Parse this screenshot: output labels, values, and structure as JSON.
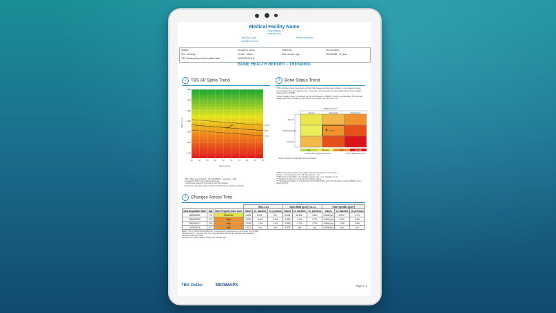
{
  "report": {
    "facility_name": "Medical Facility Name",
    "chief_name": "Chief Name",
    "address": "Address line",
    "city_zip": "City/Zip Code",
    "phone": "Phone Number",
    "email": "mail@mail.com",
    "patient_label": "Patient:",
    "patient_name": "Humphrey, Jenny",
    "patient_id_label": "Patient ID:",
    "patient_id": "TEU-00-5574",
    "sex_label": "Sex - Ethnicity:",
    "sex_value": "Female - White",
    "dob_label": "Date of birth - Age:",
    "dob_value": "12/10/1958 - 70 years",
    "modified_label": "TBS Trending Report last modified date:",
    "modified_value": "24/05/2023 10:11",
    "title": "BONE HEALTH REPORT - TRENDING"
  },
  "sections": {
    "s1_num": "1",
    "s1_title": "TBS AP Spine Trend",
    "s2_num": "2",
    "s2_title": "Bone Status Trend",
    "s3_num": "3",
    "s3_title": "Changes Across Time"
  },
  "chart_data": {
    "type": "scatter",
    "title": "TBS AP Spine Trend",
    "xlabel": "Age (years)",
    "ylabel": "TBS L1-L4",
    "x_ticks": [
      "45",
      "50",
      "55",
      "60",
      "65",
      "70",
      "75",
      "80",
      "85",
      "90"
    ],
    "y_ticks": [
      "1.600",
      "1.500",
      "1.400",
      "1.300",
      "1.200",
      "1.100",
      "1.000"
    ],
    "xlim": [
      45,
      90
    ],
    "ylim": [
      0.95,
      1.6
    ],
    "series": [
      {
        "x": [
          67.4,
          68.6,
          69.6,
          70.6
        ],
        "y": [
          1.236,
          1.244,
          1.258,
          1.262
        ]
      }
    ],
    "zone_labels": [
      "-1 SD",
      "Mean",
      "+1 SD"
    ]
  },
  "chart_notes": [
    "TBS : Reference population : USA (NHANES) - Caucasian - white",
    "Comparison TBS to age-matched reference",
    "Treated bone treatment (0) range of intra TBS analysis",
    "Self-device correction based on Trisoun Orthoplosis de plants (17 agresqs)"
  ],
  "bone_status": {
    "paragraphs": [
      "TBS is derived from the texture of the DXA image and has been shown to be related to bone microarchitecture and fracture risk. It provides complementary information about bone health, independent of BMD.",
      "\"Bone Fragility Index\" is defined as the combination of BMD T-Score and absolute TBS lumbar categories. Bone Fragility Index Zones are based upon fracture risk."
    ],
    "matrix_title": "BMD T-Score*",
    "matrix_cols": [
      "Normal",
      "Osteopenia",
      "Osteoporosis"
    ],
    "matrix_rows": [
      "Normal",
      "Partially degraded",
      "Degraded"
    ],
    "zones": [
      "Low",
      "Moderate",
      "High",
      "Very high"
    ],
    "legend_left": "Increasing Bone Fragility Index Zones",
    "legend_right": "Bone Fragility Index Zones",
    "arrow_note": "Direction of significant trend vs previous**",
    "footnotes": [
      "* BMD T-score is the minimum value of given total hip, femoral neck or L1-L4 value.",
      "Normal ≥ -1.0, Osteopenia -1.0 to -2.5, Osteoporosis < -2.5.",
      "** TBS Trend: Normal TBS > 1.31 ; Partially degraded 1.23 - 1.31 ; Degraded < 1.23",
      "*** Significant trend based on minimal least significant change",
      "**** Significant trend based on intra-precision LSC for TBS (0.03%) at the DXA (Should be) member of BMD T-Score greater than 5%."
    ]
  },
  "changes_table": {
    "group_headers": [
      "TBS L1-L4",
      "Spine BMD (g/cm²) L1-L4",
      "Total Hip BMD (g/cm²)"
    ],
    "col_headers": [
      "DXA Acquisition Date",
      "Age",
      "Bone Fragility Index Zone",
      "Values",
      "vs. baseline",
      "vs. previous",
      "Values",
      "vs. baseline",
      "vs. previous",
      "Values",
      "vs. baseline",
      "vs. previous"
    ],
    "rows": [
      [
        "28/05/2021",
        "70",
        "Moderate",
        "1.256",
        "6.0% *",
        "2%",
        "0.841",
        "11.6% *",
        "3.6%",
        "0.638 (ss)",
        "6.0% *",
        "1.7%"
      ],
      [
        "28/06/2020",
        "69",
        "High",
        "1.236",
        "4.6%",
        "3.1%",
        "0.806",
        "7.4%",
        "2.7%",
        "0.630 (ss)",
        "4.5%",
        "2.3%"
      ],
      [
        "28/06/2017",
        "68",
        "High",
        "1.198",
        "1.3%",
        "1.1%",
        "0.805",
        "4.7%",
        "3.7%",
        "0.686 (ss)",
        "1.8%",
        "1.8%"
      ],
      [
        "10/04/2016",
        "67",
        "High",
        "1.187",
        "n/a",
        "n/a",
        "0.802",
        "n/a",
        "n/a",
        "0.698 (ss)",
        "n/a",
        "n/a"
      ]
    ],
    "zone_colors": {
      "Moderate": "#e8e64a",
      "High": "#f0932e"
    },
    "notes": [
      "Patient < 65 y/o: TBS is FDA for BMD Only - Facility specific procedure and is not included. LSC for BMD",
      "calculated as 2.77 x precision error. Any comparison above this LSC are matched with an asterisk (*).",
      "Values and Numbers in bold.",
      "(ss) Bone and extended BMD (4 zones) when indicated, (ss)."
    ]
  },
  "footer": {
    "brand1": "TBS Osteo",
    "brand2": "MEDIMAPS",
    "page": "Page 1 / 2"
  }
}
